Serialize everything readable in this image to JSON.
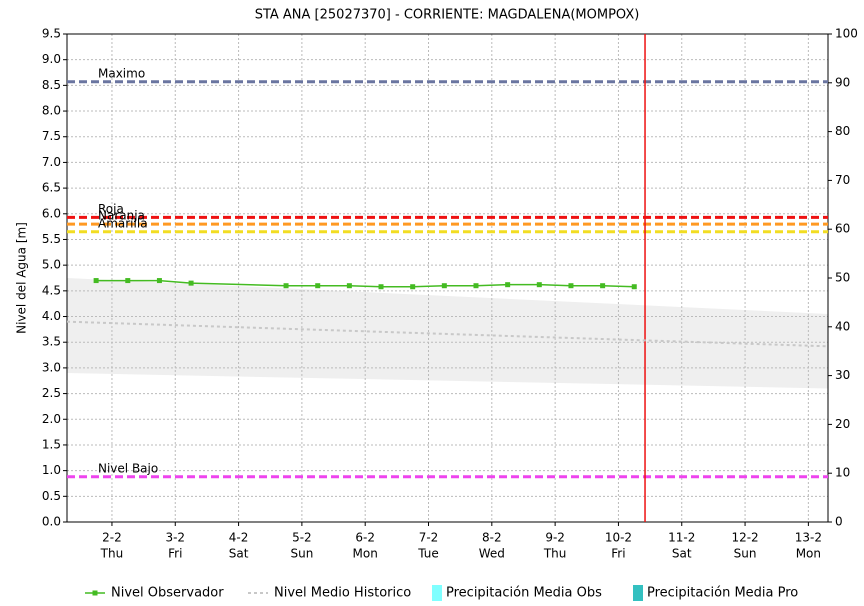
{
  "chart_data": {
    "type": "line",
    "title": "STA ANA [25027370] - CORRIENTE: MAGDALENA(MOMPOX)",
    "y_label": "Nivel del Agua [m]",
    "xlim": [
      1.29,
      13.31
    ],
    "xticks": [
      {
        "value": 2,
        "label": "2-2"
      },
      {
        "value": 3,
        "label": "3-2"
      },
      {
        "value": 4,
        "label": "4-2"
      },
      {
        "value": 5,
        "label": "5-2"
      },
      {
        "value": 6,
        "label": "6-2"
      },
      {
        "value": 7,
        "label": "7-2"
      },
      {
        "value": 8,
        "label": "8-2"
      },
      {
        "value": 9,
        "label": "9-2"
      },
      {
        "value": 10,
        "label": "10-2"
      },
      {
        "value": 11,
        "label": "11-2"
      },
      {
        "value": 12,
        "label": "12-2"
      },
      {
        "value": 13,
        "label": "13-2"
      }
    ],
    "weekdays": [
      "Thu",
      "Fri",
      "Sat",
      "Sun",
      "Mon",
      "Tue",
      "Wed",
      "Thu",
      "Fri",
      "Sat",
      "Sun",
      "Mon"
    ],
    "ylim": [
      0,
      9.5
    ],
    "yticks": [
      {
        "value": 0,
        "label": "0.0"
      },
      0.5,
      {
        "value": 1,
        "label": "1.0"
      },
      1.5,
      {
        "value": 2,
        "label": "2.0"
      },
      2.5,
      {
        "value": 3,
        "label": "3.0"
      },
      3.5,
      {
        "value": 4,
        "label": "4.0"
      },
      4.5,
      {
        "value": 5,
        "label": "5.0"
      },
      5.5,
      {
        "value": 6,
        "label": "6.0"
      },
      6.5,
      {
        "value": 7,
        "label": "7.0"
      },
      7.5,
      {
        "value": 8,
        "label": "8.0"
      },
      8.5,
      {
        "value": 9,
        "label": "9.0"
      },
      9.5
    ],
    "y2lim": [
      0,
      100
    ],
    "y2ticks": [
      0,
      10,
      20,
      30,
      40,
      50,
      60,
      70,
      80,
      90,
      100
    ],
    "grid": true,
    "series": [
      {
        "name": "Nivel Observador",
        "color": "#44bb22",
        "x": [
          1.75,
          2.25,
          2.75,
          3.25,
          4.75,
          5.25,
          5.75,
          6.25,
          6.75,
          7.25,
          7.75,
          8.25,
          8.75,
          9.25,
          9.75,
          10.25
        ],
        "values": [
          4.7,
          4.7,
          4.7,
          4.65,
          4.6,
          4.6,
          4.6,
          4.58,
          4.58,
          4.6,
          4.6,
          4.62,
          4.62,
          4.6,
          4.6,
          4.58
        ]
      },
      {
        "name": "Nivel Medio Historico",
        "color": "#c8c8c8",
        "x": [
          1.29,
          13.31
        ],
        "values": [
          3.9,
          3.42
        ]
      },
      {
        "name": "Precipitación Media Obs",
        "color": "#7fffff",
        "x": [],
        "values": []
      },
      {
        "name": "Precipitación Media Pro",
        "color": "#33c0c0",
        "x": [],
        "values": []
      }
    ],
    "band": {
      "color": "#efefef",
      "x": [
        1.29,
        13.31
      ],
      "upper": [
        4.75,
        4.05
      ],
      "lower": [
        2.9,
        2.6
      ]
    },
    "reference_lines": [
      {
        "label": "Maximo",
        "value": 8.57,
        "color": "#6a75a0"
      },
      {
        "label": "Roja",
        "value": 5.93,
        "color": "#ee1111"
      },
      {
        "label": "Naranja",
        "value": 5.8,
        "color": "#ff9922"
      },
      {
        "label": "Amarilla",
        "value": 5.65,
        "color": "#f2dd22"
      },
      {
        "label": "Nivel Bajo",
        "value": 0.88,
        "color": "#ee44ee"
      }
    ],
    "vertical_line": {
      "x": 10.42,
      "color": "#ee1111"
    }
  }
}
